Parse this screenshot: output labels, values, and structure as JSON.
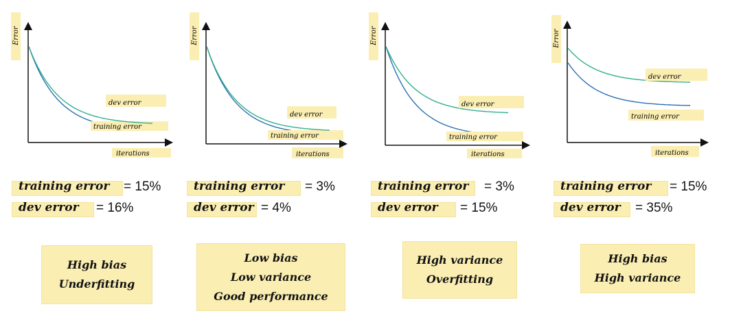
{
  "colors": {
    "train": "#2a6fb3",
    "dev": "#2fae8c",
    "note": "#fbeeb2",
    "axis": "#111111"
  },
  "chart_data": [
    {
      "type": "line",
      "ylabel": "Error",
      "xlabel": "iterations",
      "series": [
        {
          "name": "training error",
          "start": 1.0,
          "end": 0.13
        },
        {
          "name": "dev error",
          "start": 1.0,
          "end": 0.2
        }
      ]
    },
    {
      "type": "line",
      "ylabel": "Error",
      "xlabel": "iterations",
      "series": [
        {
          "name": "training error",
          "start": 1.0,
          "end": 0.1
        },
        {
          "name": "dev error",
          "start": 1.0,
          "end": 0.14
        }
      ]
    },
    {
      "type": "line",
      "ylabel": "Error",
      "xlabel": "iterations",
      "series": [
        {
          "name": "training error",
          "start": 1.0,
          "end": 0.1
        },
        {
          "name": "dev error",
          "start": 1.0,
          "end": 0.33
        }
      ]
    },
    {
      "type": "line",
      "ylabel": "Error",
      "xlabel": "iterations",
      "series": [
        {
          "name": "training error",
          "start": 0.82,
          "end": 0.38
        },
        {
          "name": "dev error",
          "start": 0.97,
          "end": 0.62
        }
      ]
    }
  ],
  "metrics": [
    {
      "train_label": "training error",
      "train_value": "= 15%",
      "dev_label": "dev error",
      "dev_value": "= 16%"
    },
    {
      "train_label": "training error",
      "train_value": "= 3%",
      "dev_label": "dev error",
      "dev_value": "= 4%"
    },
    {
      "train_label": "training error",
      "train_value": "= 3%",
      "dev_label": "dev error",
      "dev_value": "= 15%"
    },
    {
      "train_label": "training error",
      "train_value": "= 15%",
      "dev_label": "dev error",
      "dev_value": "= 35%"
    }
  ],
  "conclusions": [
    {
      "lines": [
        "High bias",
        "Underfitting"
      ]
    },
    {
      "lines": [
        "Low bias",
        "Low variance",
        "Good performance"
      ]
    },
    {
      "lines": [
        "High variance",
        "Overfitting"
      ]
    },
    {
      "lines": [
        "High bias",
        "High variance"
      ]
    }
  ]
}
